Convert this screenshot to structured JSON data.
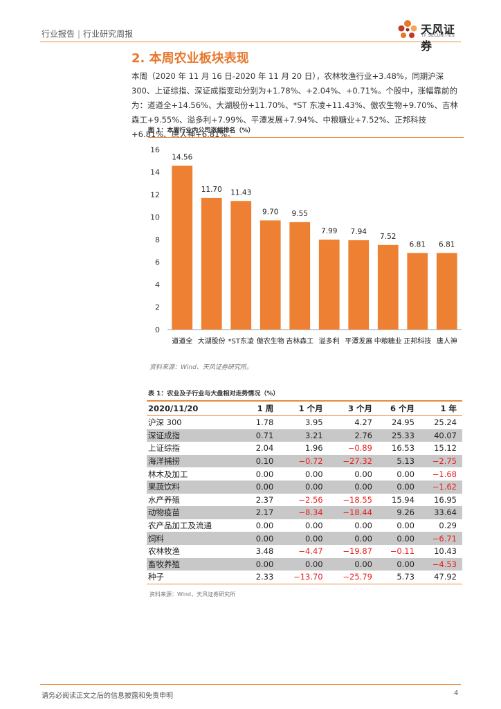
{
  "header": {
    "category": "行业报告",
    "separator": "|",
    "subcategory": "行业研究周报"
  },
  "logo": {
    "cn": "天风证券",
    "en": "TF SECURITIES",
    "colors": [
      "#e8762c",
      "#c0392b",
      "#f2a65a"
    ]
  },
  "section": {
    "title": "2. 本周农业板块表现"
  },
  "paragraph": "本周（2020 年 11 月 16 日-2020 年 11 月 20 日），农林牧渔行业+3.48%，同期沪深 300、上证综指、深证成指变动分别为+1.78%、+2.04%、+0.71%。个股中，涨幅靠前的为：道道全+14.56%、大湖股份+11.70%、*ST 东凌+11.43%、傲农生物+9.70%、吉林森工+9.55%、溢多利+7.99%、平潭发展+7.94%、中粮糖业+7.52%、正邦科技+6.81%、唐人神+6.81%。",
  "figure": {
    "caption": "图 1：本周行业内公司涨幅排名（%）",
    "source": "资料来源：Wind、天风证券研究所。"
  },
  "chart_data": {
    "type": "bar",
    "title": "本周行业内公司涨幅排名（%）",
    "categories": [
      "道道全",
      "大湖股份",
      "*ST东凌",
      "傲农生物",
      "吉林森工",
      "溢多利",
      "平潭发展",
      "中粮糖业",
      "正邦科技",
      "唐人神"
    ],
    "values": [
      14.56,
      11.7,
      11.43,
      9.7,
      9.55,
      7.99,
      7.94,
      7.52,
      6.81,
      6.81
    ],
    "value_labels": [
      "14.56",
      "11.70",
      "11.43",
      "9.70",
      "9.55",
      "7.99",
      "7.94",
      "7.52",
      "6.81",
      "6.81"
    ],
    "ylim": [
      0,
      16
    ],
    "yticks": [
      "0",
      "2",
      "4",
      "6",
      "8",
      "10",
      "12",
      "14",
      "16"
    ],
    "xlabel": "",
    "ylabel": "",
    "color": "#ee8033",
    "grid": false
  },
  "table": {
    "caption": "表 1：农业及子行业与大盘相对走势情况（%）",
    "headers": [
      "2020/11/20",
      "1 周",
      "1 个月",
      "3 个月",
      "6 个月",
      "1 年"
    ],
    "rows": [
      [
        "沪深 300",
        "1.78",
        "3.95",
        "4.27",
        "24.95",
        "25.24"
      ],
      [
        "深证成指",
        "0.71",
        "3.21",
        "2.76",
        "25.33",
        "40.07"
      ],
      [
        "上证综指",
        "2.04",
        "1.96",
        "−0.89",
        "16.53",
        "15.12"
      ],
      [
        "海洋捕捞",
        "0.10",
        "−0.72",
        "−27.32",
        "5.13",
        "−2.75"
      ],
      [
        "林木及加工",
        "0.00",
        "0.00",
        "0.00",
        "0.00",
        "−1.68"
      ],
      [
        "果蔬饮料",
        "0.00",
        "0.00",
        "0.00",
        "0.00",
        "−1.62"
      ],
      [
        "水产养殖",
        "2.37",
        "−2.56",
        "−18.55",
        "15.94",
        "16.95"
      ],
      [
        "动物疫苗",
        "2.17",
        "−8.34",
        "−18.44",
        "9.26",
        "33.64"
      ],
      [
        "农产品加工及流通",
        "0.00",
        "0.00",
        "0.00",
        "0.00",
        "0.29"
      ],
      [
        "饲料",
        "0.00",
        "0.00",
        "0.00",
        "0.00",
        "−6.71"
      ],
      [
        "农林牧渔",
        "3.48",
        "−4.47",
        "−19.87",
        "−0.11",
        "10.43"
      ],
      [
        "畜牧养殖",
        "0.00",
        "0.00",
        "0.00",
        "0.00",
        "−4.53"
      ],
      [
        "种子",
        "2.33",
        "−13.70",
        "−25.79",
        "5.73",
        "47.92"
      ]
    ],
    "source": "资料来源：Wind，天风证券研究所",
    "negative_color": "#e81f1f",
    "stripe_color": "#c8c8c8"
  },
  "footer": {
    "disclaimer": "请务必阅读正文之后的信息披露和免责申明",
    "page": "4"
  }
}
